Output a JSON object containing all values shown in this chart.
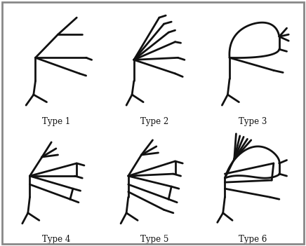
{
  "panel_background": "#ffffff",
  "border_color": "#aaaaaa",
  "line_color": "#111111",
  "line_width": 2.0,
  "labels": [
    "Type 1",
    "Type 2",
    "Type 3",
    "Type 4",
    "Type 5",
    "Type 6"
  ],
  "label_fontsize": 8.5
}
